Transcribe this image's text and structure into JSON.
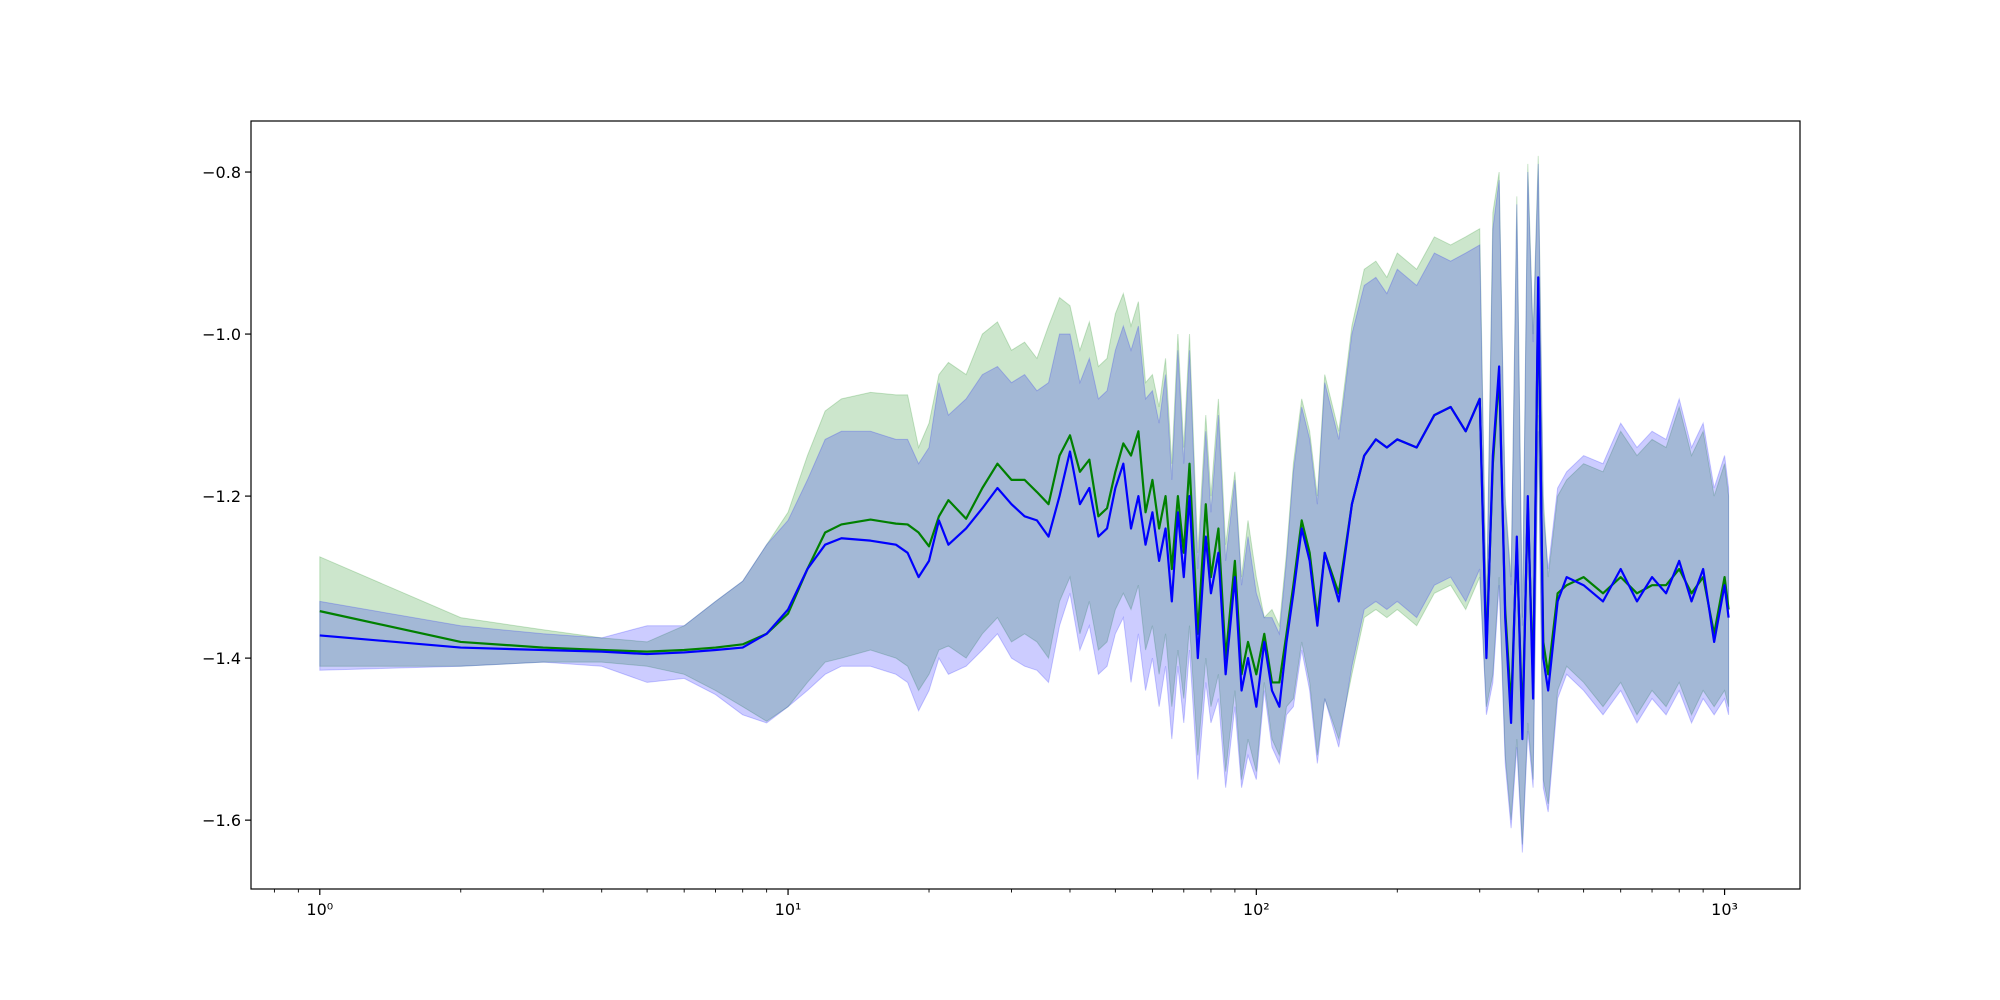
{
  "chart_data": {
    "type": "line",
    "xscale": "log",
    "xlim": [
      0.713,
      1449
    ],
    "ylim": [
      -1.685,
      -0.737
    ],
    "xticks": [
      {
        "value": 1,
        "label": "10⁰"
      },
      {
        "value": 10,
        "label": "10¹"
      },
      {
        "value": 100,
        "label": "10²"
      },
      {
        "value": 1000,
        "label": "10³"
      }
    ],
    "xminorticks": [
      0.8,
      0.9,
      2,
      3,
      4,
      5,
      6,
      7,
      8,
      9,
      20,
      30,
      40,
      50,
      60,
      70,
      80,
      90,
      200,
      300,
      400,
      500,
      600,
      700,
      800,
      900
    ],
    "yticks": [
      {
        "value": -1.6,
        "label": "−1.6"
      },
      {
        "value": -1.4,
        "label": "−1.4"
      },
      {
        "value": -1.2,
        "label": "−1.2"
      },
      {
        "value": -1.0,
        "label": "−1.0"
      },
      {
        "value": -0.8,
        "label": "−0.8"
      }
    ],
    "x": [
      1,
      2,
      3,
      4,
      5,
      6,
      7,
      8,
      9,
      10,
      11,
      12,
      13,
      15,
      17,
      18,
      19,
      20,
      21,
      22,
      24,
      26,
      28,
      30,
      32,
      34,
      36,
      38,
      40,
      42,
      44,
      46,
      48,
      50,
      52,
      54,
      56,
      58,
      60,
      62,
      64,
      66,
      68,
      70,
      72,
      75,
      78,
      80,
      83,
      86,
      90,
      93,
      96,
      100,
      104,
      108,
      112,
      116,
      120,
      125,
      130,
      135,
      140,
      150,
      160,
      170,
      180,
      190,
      200,
      220,
      240,
      260,
      280,
      300,
      310,
      320,
      330,
      340,
      350,
      360,
      370,
      380,
      390,
      400,
      410,
      420,
      440,
      460,
      500,
      550,
      600,
      650,
      700,
      750,
      800,
      850,
      900,
      950,
      1000,
      1020
    ],
    "series": [
      {
        "color": "#008000",
        "band_color": "#008000",
        "band_opacity": 0.2,
        "values": [
          -1.342,
          -1.38,
          -1.387,
          -1.39,
          -1.392,
          -1.39,
          -1.387,
          -1.383,
          -1.37,
          -1.345,
          -1.29,
          -1.245,
          -1.235,
          -1.229,
          -1.234,
          -1.235,
          -1.245,
          -1.262,
          -1.225,
          -1.205,
          -1.228,
          -1.19,
          -1.16,
          -1.18,
          -1.18,
          -1.195,
          -1.21,
          -1.15,
          -1.125,
          -1.17,
          -1.155,
          -1.225,
          -1.215,
          -1.17,
          -1.135,
          -1.15,
          -1.12,
          -1.22,
          -1.18,
          -1.24,
          -1.2,
          -1.29,
          -1.2,
          -1.27,
          -1.16,
          -1.37,
          -1.21,
          -1.3,
          -1.24,
          -1.4,
          -1.28,
          -1.42,
          -1.38,
          -1.42,
          -1.37,
          -1.43,
          -1.43,
          -1.37,
          -1.31,
          -1.23,
          -1.27,
          -1.35,
          -1.27,
          -1.32,
          -1.21,
          -1.15,
          -1.13,
          -1.14,
          -1.13,
          -1.14,
          -1.1,
          -1.09,
          -1.12,
          -1.08,
          -1.39,
          -1.16,
          -1.05,
          -1.34,
          -1.46,
          -1.26,
          -1.48,
          -1.21,
          -1.43,
          -0.95,
          -1.38,
          -1.42,
          -1.32,
          -1.31,
          -1.3,
          -1.32,
          -1.3,
          -1.32,
          -1.31,
          -1.31,
          -1.29,
          -1.32,
          -1.3,
          -1.37,
          -1.3,
          -1.34
        ],
        "upper": [
          -1.275,
          -1.35,
          -1.365,
          -1.375,
          -1.38,
          -1.36,
          -1.33,
          -1.305,
          -1.26,
          -1.22,
          -1.15,
          -1.095,
          -1.08,
          -1.072,
          -1.075,
          -1.075,
          -1.14,
          -1.11,
          -1.05,
          -1.035,
          -1.05,
          -1.0,
          -0.985,
          -1.02,
          -1.01,
          -1.03,
          -0.99,
          -0.955,
          -0.965,
          -1.02,
          -0.985,
          -1.04,
          -1.03,
          -0.975,
          -0.95,
          -0.99,
          -0.96,
          -1.06,
          -1.05,
          -1.09,
          -1.03,
          -1.16,
          -1.0,
          -1.14,
          -1.0,
          -1.27,
          -1.1,
          -1.2,
          -1.08,
          -1.26,
          -1.17,
          -1.3,
          -1.23,
          -1.3,
          -1.35,
          -1.34,
          -1.36,
          -1.27,
          -1.16,
          -1.08,
          -1.12,
          -1.2,
          -1.05,
          -1.12,
          -0.99,
          -0.92,
          -0.91,
          -0.93,
          -0.9,
          -0.92,
          -0.88,
          -0.89,
          -0.88,
          -0.87,
          -1.34,
          -0.85,
          -0.8,
          -1.2,
          -1.3,
          -0.83,
          -1.35,
          -0.79,
          -1.0,
          -0.78,
          -1.2,
          -1.3,
          -1.2,
          -1.18,
          -1.16,
          -1.17,
          -1.12,
          -1.15,
          -1.13,
          -1.14,
          -1.09,
          -1.15,
          -1.12,
          -1.2,
          -1.16,
          -1.2
        ],
        "lower": [
          -1.41,
          -1.41,
          -1.405,
          -1.405,
          -1.41,
          -1.42,
          -1.44,
          -1.46,
          -1.478,
          -1.46,
          -1.43,
          -1.405,
          -1.4,
          -1.39,
          -1.4,
          -1.41,
          -1.44,
          -1.42,
          -1.39,
          -1.385,
          -1.4,
          -1.37,
          -1.35,
          -1.38,
          -1.37,
          -1.38,
          -1.4,
          -1.33,
          -1.3,
          -1.37,
          -1.33,
          -1.39,
          -1.38,
          -1.34,
          -1.32,
          -1.34,
          -1.31,
          -1.39,
          -1.36,
          -1.42,
          -1.37,
          -1.46,
          -1.39,
          -1.45,
          -1.36,
          -1.52,
          -1.4,
          -1.46,
          -1.42,
          -1.54,
          -1.44,
          -1.55,
          -1.5,
          -1.54,
          -1.43,
          -1.5,
          -1.52,
          -1.46,
          -1.45,
          -1.38,
          -1.43,
          -1.52,
          -1.45,
          -1.5,
          -1.42,
          -1.35,
          -1.34,
          -1.35,
          -1.34,
          -1.36,
          -1.32,
          -1.31,
          -1.34,
          -1.3,
          -1.46,
          -1.42,
          -1.3,
          -1.52,
          -1.6,
          -1.5,
          -1.63,
          -1.48,
          -1.55,
          -1.1,
          -1.55,
          -1.58,
          -1.44,
          -1.41,
          -1.43,
          -1.46,
          -1.43,
          -1.47,
          -1.44,
          -1.46,
          -1.43,
          -1.47,
          -1.44,
          -1.46,
          -1.44,
          -1.46
        ]
      },
      {
        "color": "#0000ff",
        "band_color": "#0000ff",
        "band_opacity": 0.2,
        "values": [
          -1.372,
          -1.387,
          -1.39,
          -1.392,
          -1.395,
          -1.393,
          -1.39,
          -1.387,
          -1.37,
          -1.34,
          -1.29,
          -1.26,
          -1.252,
          -1.255,
          -1.26,
          -1.27,
          -1.3,
          -1.28,
          -1.23,
          -1.26,
          -1.24,
          -1.215,
          -1.19,
          -1.21,
          -1.225,
          -1.23,
          -1.25,
          -1.2,
          -1.145,
          -1.21,
          -1.19,
          -1.25,
          -1.24,
          -1.19,
          -1.16,
          -1.24,
          -1.2,
          -1.26,
          -1.22,
          -1.28,
          -1.24,
          -1.33,
          -1.22,
          -1.3,
          -1.2,
          -1.4,
          -1.25,
          -1.32,
          -1.27,
          -1.42,
          -1.3,
          -1.44,
          -1.4,
          -1.46,
          -1.38,
          -1.44,
          -1.46,
          -1.38,
          -1.32,
          -1.24,
          -1.28,
          -1.36,
          -1.27,
          -1.33,
          -1.21,
          -1.15,
          -1.13,
          -1.14,
          -1.13,
          -1.14,
          -1.1,
          -1.09,
          -1.12,
          -1.08,
          -1.4,
          -1.15,
          -1.04,
          -1.35,
          -1.48,
          -1.25,
          -1.5,
          -1.2,
          -1.45,
          -0.93,
          -1.4,
          -1.44,
          -1.33,
          -1.3,
          -1.31,
          -1.33,
          -1.29,
          -1.33,
          -1.3,
          -1.32,
          -1.28,
          -1.33,
          -1.29,
          -1.38,
          -1.31,
          -1.35
        ],
        "upper": [
          -1.33,
          -1.36,
          -1.37,
          -1.375,
          -1.36,
          -1.36,
          -1.33,
          -1.305,
          -1.26,
          -1.23,
          -1.18,
          -1.13,
          -1.12,
          -1.12,
          -1.13,
          -1.13,
          -1.16,
          -1.14,
          -1.06,
          -1.1,
          -1.08,
          -1.05,
          -1.04,
          -1.06,
          -1.05,
          -1.07,
          -1.06,
          -1.0,
          -1.0,
          -1.06,
          -1.03,
          -1.08,
          -1.07,
          -1.02,
          -0.99,
          -1.02,
          -0.99,
          -1.08,
          -1.07,
          -1.11,
          -1.05,
          -1.18,
          -1.02,
          -1.16,
          -1.02,
          -1.29,
          -1.12,
          -1.22,
          -1.1,
          -1.28,
          -1.18,
          -1.31,
          -1.25,
          -1.32,
          -1.35,
          -1.35,
          -1.37,
          -1.28,
          -1.17,
          -1.09,
          -1.13,
          -1.21,
          -1.06,
          -1.13,
          -1.0,
          -0.94,
          -0.93,
          -0.95,
          -0.92,
          -0.94,
          -0.9,
          -0.91,
          -0.9,
          -0.89,
          -1.35,
          -0.87,
          -0.81,
          -1.21,
          -1.31,
          -0.84,
          -1.36,
          -0.8,
          -1.01,
          -0.79,
          -1.22,
          -1.29,
          -1.19,
          -1.17,
          -1.15,
          -1.16,
          -1.11,
          -1.14,
          -1.12,
          -1.13,
          -1.08,
          -1.14,
          -1.11,
          -1.19,
          -1.15,
          -1.19
        ],
        "lower": [
          -1.415,
          -1.41,
          -1.405,
          -1.41,
          -1.43,
          -1.425,
          -1.445,
          -1.47,
          -1.48,
          -1.46,
          -1.44,
          -1.42,
          -1.41,
          -1.41,
          -1.42,
          -1.43,
          -1.465,
          -1.44,
          -1.4,
          -1.42,
          -1.41,
          -1.39,
          -1.37,
          -1.4,
          -1.41,
          -1.415,
          -1.43,
          -1.36,
          -1.32,
          -1.39,
          -1.36,
          -1.42,
          -1.41,
          -1.37,
          -1.35,
          -1.43,
          -1.37,
          -1.44,
          -1.4,
          -1.46,
          -1.41,
          -1.5,
          -1.41,
          -1.48,
          -1.39,
          -1.55,
          -1.43,
          -1.48,
          -1.45,
          -1.56,
          -1.46,
          -1.56,
          -1.52,
          -1.55,
          -1.44,
          -1.51,
          -1.53,
          -1.47,
          -1.46,
          -1.39,
          -1.44,
          -1.53,
          -1.45,
          -1.51,
          -1.41,
          -1.34,
          -1.33,
          -1.34,
          -1.33,
          -1.35,
          -1.31,
          -1.3,
          -1.33,
          -1.29,
          -1.47,
          -1.43,
          -1.31,
          -1.53,
          -1.61,
          -1.51,
          -1.64,
          -1.49,
          -1.56,
          -1.12,
          -1.56,
          -1.59,
          -1.45,
          -1.42,
          -1.44,
          -1.47,
          -1.44,
          -1.48,
          -1.45,
          -1.47,
          -1.44,
          -1.48,
          -1.45,
          -1.47,
          -1.45,
          -1.47
        ]
      }
    ]
  }
}
